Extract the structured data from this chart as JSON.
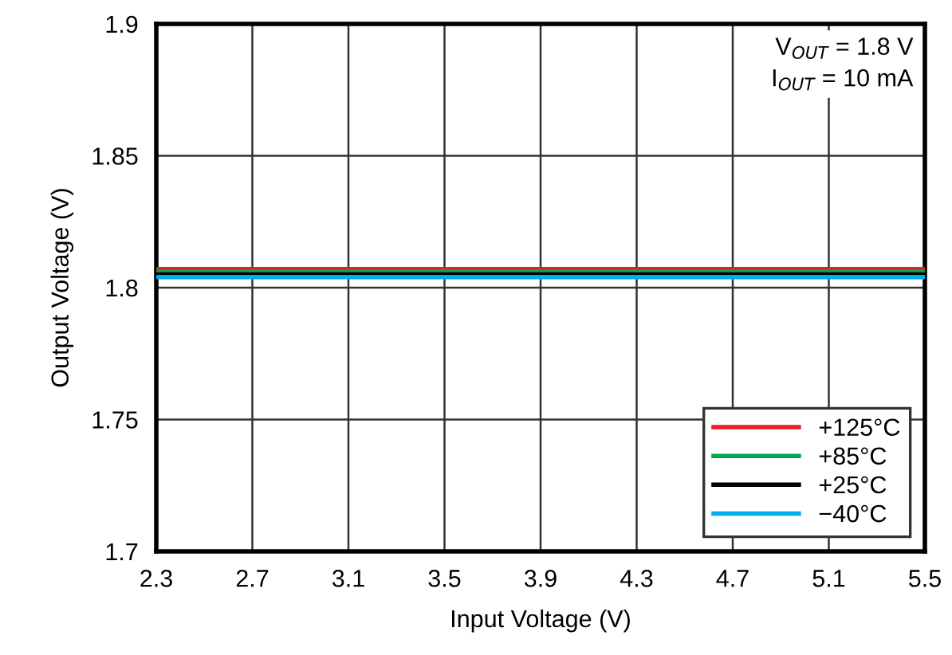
{
  "chart_data": {
    "type": "line",
    "xlabel": "Input Voltage (V)",
    "ylabel": "Output Voltage (V)",
    "x": [
      2.3,
      5.5
    ],
    "series": [
      {
        "name": "+125°C",
        "color": "#ed1c24",
        "values": [
          1.807,
          1.807
        ]
      },
      {
        "name": "+85°C",
        "color": "#00a651",
        "values": [
          1.806,
          1.806
        ]
      },
      {
        "name": "+25°C",
        "color": "#000000",
        "values": [
          1.805,
          1.805
        ]
      },
      {
        "name": "−40°C",
        "color": "#00aeef",
        "values": [
          1.804,
          1.804
        ]
      }
    ],
    "xlim": [
      2.3,
      5.5
    ],
    "xticks": [
      2.3,
      2.7,
      3.1,
      3.5,
      3.9,
      4.3,
      4.7,
      5.1,
      5.5
    ],
    "ylim": [
      1.7,
      1.9
    ],
    "yticks": [
      1.7,
      1.75,
      1.8,
      1.85,
      1.9
    ],
    "annotations": [
      "V$_{OUT}$ = 1.8 V\nI$_{OUT}$ = 10 mA"
    ],
    "grid": true,
    "legend": "bottom right",
    "marker": "none",
    "line_style": "solid"
  }
}
